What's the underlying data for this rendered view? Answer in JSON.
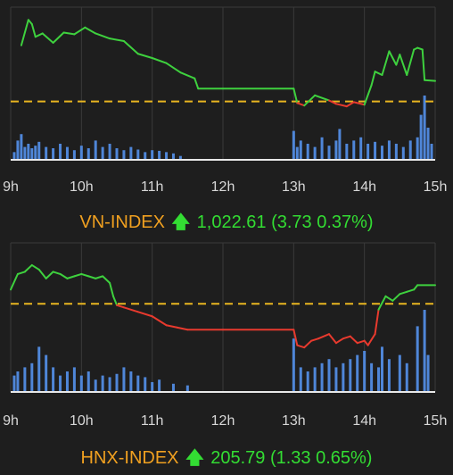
{
  "colors": {
    "background": "#1e1e1e",
    "grid": "#3a3a3a",
    "up": "#3ed13e",
    "down": "#e83a2e",
    "reference": "#e8b520",
    "volume": "#4f86d8",
    "name": "#f0a020",
    "value": "#33dd33"
  },
  "icons": {
    "up_arrow": "arrow-up-icon"
  },
  "vn": {
    "name": "VN-INDEX",
    "arrow": "🡅",
    "value": "1,022.61",
    "change": "(3.73 0.37%)"
  },
  "hnx": {
    "name": "HNX-INDEX",
    "arrow": "🡅",
    "value": "205.79",
    "change": "(1.33 0.65%)"
  },
  "chart_data": [
    {
      "type": "line",
      "title": "VN-INDEX",
      "x_ticks": [
        "9h",
        "10h",
        "11h",
        "12h",
        "13h",
        "14h",
        "15h"
      ],
      "reference": 1018.88,
      "ylim": [
        1012.0,
        1030.0
      ],
      "series": [
        {
          "x": [
            9.15,
            9.25,
            9.3,
            9.35,
            9.45,
            9.6,
            9.75,
            9.9,
            10.05,
            10.2,
            10.4,
            10.6,
            10.8,
            11.0,
            11.2,
            11.4,
            11.6,
            11.65,
            12.0,
            13.0,
            13.05,
            13.15,
            13.3,
            13.5,
            13.6,
            13.75,
            13.85,
            14.0,
            14.1,
            14.15,
            14.25,
            14.35,
            14.45,
            14.5,
            14.6,
            14.7,
            14.75,
            14.82,
            14.85,
            15.0
          ],
          "y": [
            1025.5,
            1028.5,
            1028.0,
            1026.5,
            1026.9,
            1025.8,
            1027.0,
            1026.8,
            1027.6,
            1026.9,
            1026.3,
            1026.0,
            1024.5,
            1024.0,
            1023.4,
            1022.3,
            1021.6,
            1020.4,
            1020.4,
            1020.4,
            1018.7,
            1018.4,
            1019.6,
            1019.0,
            1018.6,
            1018.3,
            1018.8,
            1018.5,
            1020.8,
            1022.4,
            1022.0,
            1024.8,
            1023.2,
            1024.4,
            1022.0,
            1025.0,
            1025.2,
            1025.0,
            1021.4,
            1021.3
          ]
        }
      ],
      "volume": {
        "x": [
          9.05,
          9.1,
          9.15,
          9.2,
          9.25,
          9.3,
          9.35,
          9.4,
          9.5,
          9.6,
          9.7,
          9.8,
          9.9,
          10.0,
          10.1,
          10.2,
          10.3,
          10.4,
          10.5,
          10.6,
          10.7,
          10.8,
          10.9,
          11.0,
          11.1,
          11.2,
          11.3,
          11.4,
          13.0,
          13.05,
          13.1,
          13.2,
          13.3,
          13.4,
          13.5,
          13.6,
          13.65,
          13.75,
          13.85,
          13.95,
          14.05,
          14.15,
          14.25,
          14.35,
          14.45,
          14.55,
          14.65,
          14.75,
          14.8,
          14.85,
          14.9,
          14.95
        ],
        "values": [
          0.12,
          0.3,
          0.4,
          0.2,
          0.25,
          0.18,
          0.22,
          0.28,
          0.2,
          0.18,
          0.25,
          0.2,
          0.15,
          0.22,
          0.18,
          0.3,
          0.2,
          0.25,
          0.18,
          0.15,
          0.2,
          0.16,
          0.12,
          0.15,
          0.14,
          0.12,
          0.1,
          0.06,
          0.45,
          0.2,
          0.3,
          0.25,
          0.2,
          0.35,
          0.22,
          0.3,
          0.48,
          0.25,
          0.3,
          0.35,
          0.25,
          0.28,
          0.22,
          0.3,
          0.25,
          0.2,
          0.3,
          0.35,
          0.7,
          1.0,
          0.5,
          0.25
        ]
      }
    },
    {
      "type": "line",
      "title": "HNX-INDEX",
      "x_ticks": [
        "9h",
        "10h",
        "11h",
        "12h",
        "13h",
        "14h",
        "15h"
      ],
      "reference": 204.46,
      "ylim": [
        200.5,
        207.2
      ],
      "series": [
        {
          "x": [
            9.0,
            9.1,
            9.2,
            9.3,
            9.4,
            9.5,
            9.6,
            9.7,
            9.8,
            9.9,
            10.0,
            10.1,
            10.2,
            10.3,
            10.4,
            10.45,
            10.5,
            10.6,
            10.8,
            11.0,
            11.2,
            11.35,
            11.5,
            12.0,
            13.0,
            13.05,
            13.15,
            13.25,
            13.35,
            13.5,
            13.6,
            13.7,
            13.8,
            13.9,
            14.0,
            14.05,
            14.15,
            14.2,
            14.3,
            14.4,
            14.5,
            14.6,
            14.7,
            14.75,
            15.0
          ],
          "y": [
            205.1,
            205.8,
            205.9,
            206.2,
            206.0,
            205.6,
            205.9,
            205.8,
            205.6,
            205.7,
            205.8,
            205.7,
            205.6,
            205.7,
            205.4,
            204.8,
            204.4,
            204.3,
            204.1,
            203.9,
            203.5,
            203.4,
            203.3,
            203.3,
            203.3,
            202.6,
            202.5,
            202.8,
            202.9,
            203.1,
            202.7,
            202.9,
            203.0,
            202.7,
            202.8,
            202.6,
            203.1,
            204.2,
            204.8,
            204.6,
            204.9,
            205.0,
            205.1,
            205.3,
            205.3
          ]
        }
      ],
      "volume": {
        "x": [
          9.05,
          9.1,
          9.2,
          9.3,
          9.4,
          9.5,
          9.6,
          9.7,
          9.8,
          9.9,
          10.0,
          10.1,
          10.2,
          10.3,
          10.4,
          10.5,
          10.6,
          10.7,
          10.8,
          10.9,
          11.0,
          11.1,
          11.3,
          11.5,
          13.0,
          13.1,
          13.2,
          13.3,
          13.4,
          13.5,
          13.6,
          13.7,
          13.8,
          13.9,
          14.0,
          14.1,
          14.2,
          14.25,
          14.35,
          14.5,
          14.6,
          14.75,
          14.85,
          14.9
        ],
        "values": [
          0.2,
          0.25,
          0.3,
          0.35,
          0.55,
          0.45,
          0.3,
          0.2,
          0.25,
          0.3,
          0.2,
          0.25,
          0.15,
          0.2,
          0.18,
          0.22,
          0.3,
          0.25,
          0.2,
          0.18,
          0.12,
          0.15,
          0.1,
          0.08,
          0.65,
          0.3,
          0.25,
          0.3,
          0.35,
          0.4,
          0.3,
          0.35,
          0.4,
          0.45,
          0.5,
          0.35,
          0.3,
          0.55,
          0.4,
          0.45,
          0.35,
          0.8,
          1.0,
          0.45
        ]
      }
    }
  ]
}
